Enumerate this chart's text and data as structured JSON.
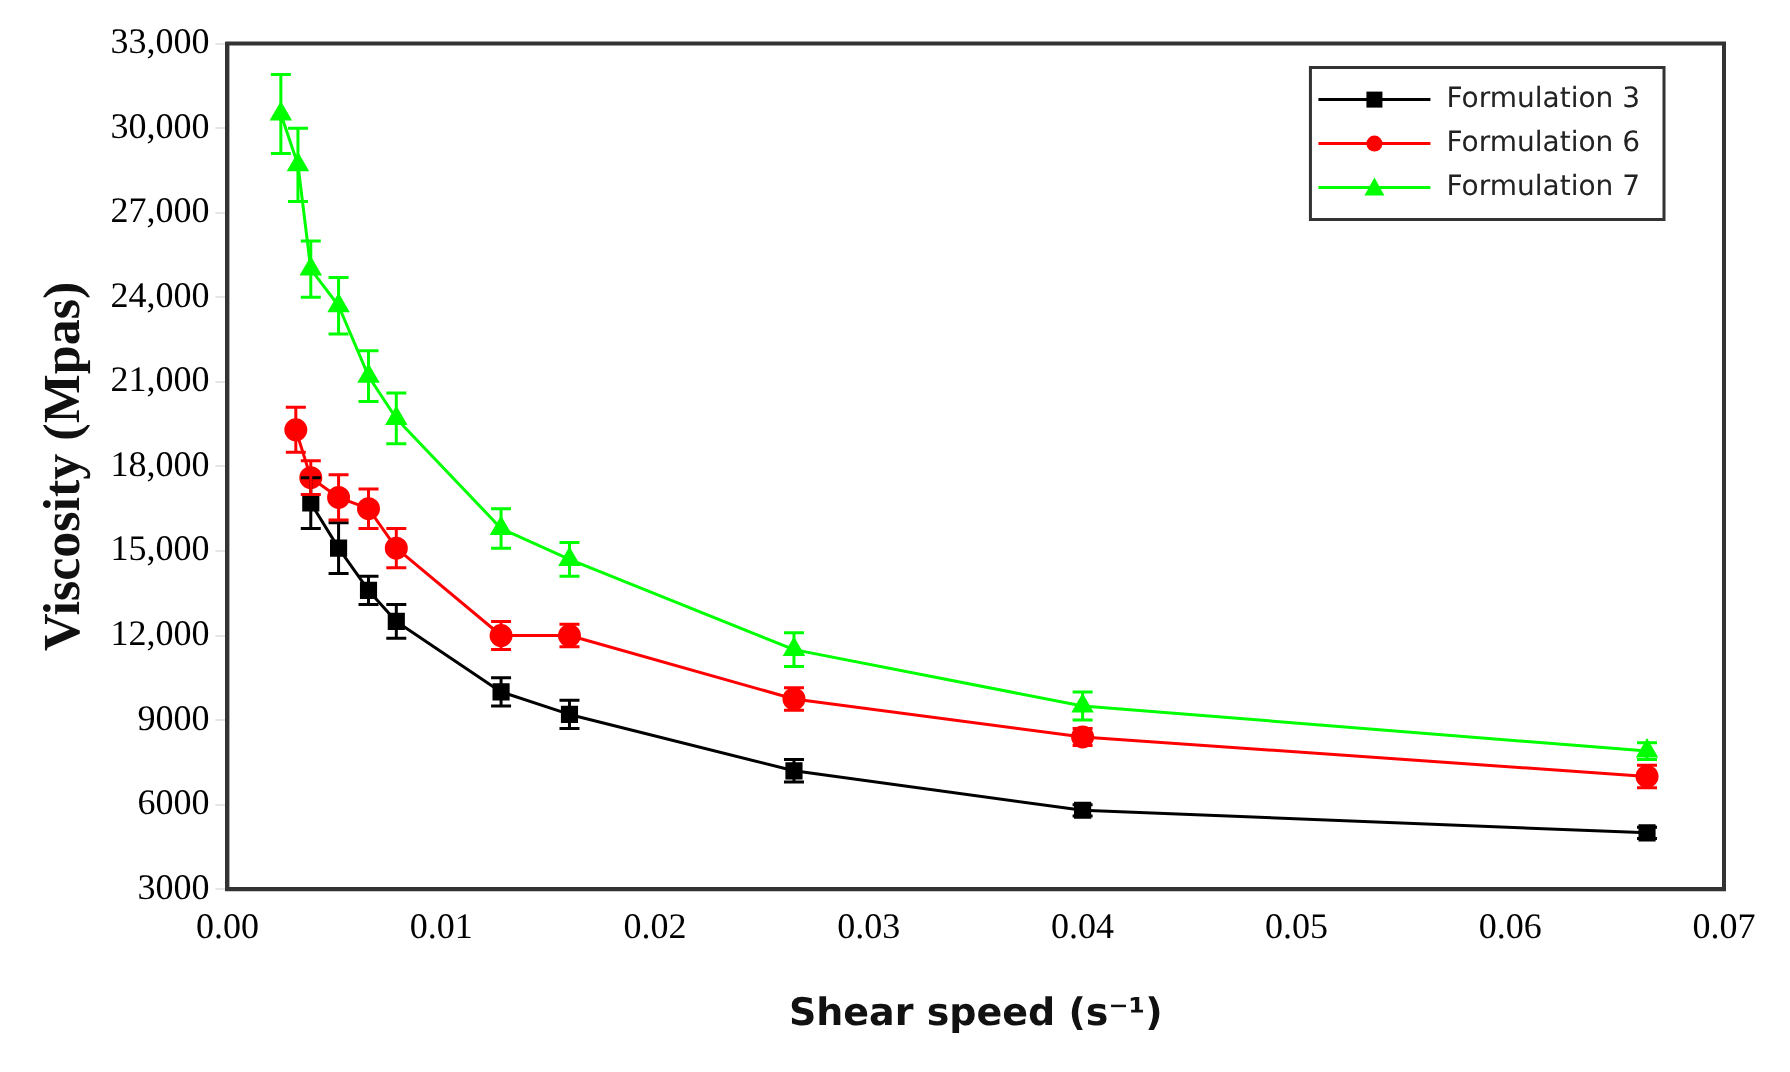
{
  "chart_data": {
    "type": "line",
    "xlabel": "Shear speed (s⁻¹)",
    "ylabel": "Viscosity (Mpas)",
    "xlim": [
      0,
      0.07
    ],
    "xticks": [
      {
        "value": 0,
        "label": "0.00"
      },
      0.01,
      0.02,
      0.03,
      0.04,
      0.05,
      0.06,
      0.07
    ],
    "ylim": [
      3000,
      33000
    ],
    "yticks": [
      {
        "value": 3000,
        "label": "3000"
      },
      {
        "value": 6000,
        "label": "6000"
      },
      {
        "value": 9000,
        "label": "9000"
      },
      {
        "value": 12000,
        "label": "12,000"
      },
      {
        "value": 15000,
        "label": "15,000"
      },
      {
        "value": 18000,
        "label": "18,000"
      },
      {
        "value": 21000,
        "label": "21,000"
      },
      {
        "value": 24000,
        "label": "24,000"
      },
      {
        "value": 27000,
        "label": "27,000"
      },
      {
        "value": 30000,
        "label": "30,000"
      },
      {
        "value": 33000,
        "label": "33,000"
      }
    ],
    "grid": false,
    "legend": "top right",
    "line_style": "solid",
    "series": [
      {
        "name": "Formulation 3",
        "color": "#000000",
        "marker": "square",
        "x": [
          0.0039,
          0.0052,
          0.0066,
          0.0079,
          0.0128,
          0.016,
          0.0265,
          0.04,
          0.0664
        ],
        "values": [
          16700,
          15100,
          13600,
          12500,
          10000,
          9200,
          7200,
          5800,
          5000
        ],
        "errors": [
          900,
          900,
          500,
          600,
          500,
          500,
          400,
          200,
          200
        ]
      },
      {
        "name": "Formulation 6",
        "color": "#ff0000",
        "marker": "circle",
        "x": [
          0.0032,
          0.0039,
          0.0052,
          0.0066,
          0.0079,
          0.0128,
          0.016,
          0.0265,
          0.04,
          0.0664
        ],
        "values": [
          19300,
          17600,
          16900,
          16500,
          15100,
          12000,
          12000,
          9750,
          8400,
          7000
        ],
        "errors": [
          800,
          600,
          800,
          700,
          700,
          500,
          400,
          400,
          300,
          400
        ]
      },
      {
        "name": "Formulation 7",
        "color": "#00ff00",
        "marker": "triangle",
        "x": [
          0.0025,
          0.0033,
          0.0039,
          0.0052,
          0.0066,
          0.0079,
          0.0128,
          0.016,
          0.0265,
          0.04,
          0.0664
        ],
        "values": [
          30500,
          28700,
          25000,
          23700,
          21200,
          19700,
          15800,
          14700,
          11500,
          9500,
          7900
        ],
        "errors": [
          1400,
          1300,
          1000,
          1000,
          900,
          900,
          700,
          600,
          600,
          500,
          300
        ]
      }
    ]
  }
}
